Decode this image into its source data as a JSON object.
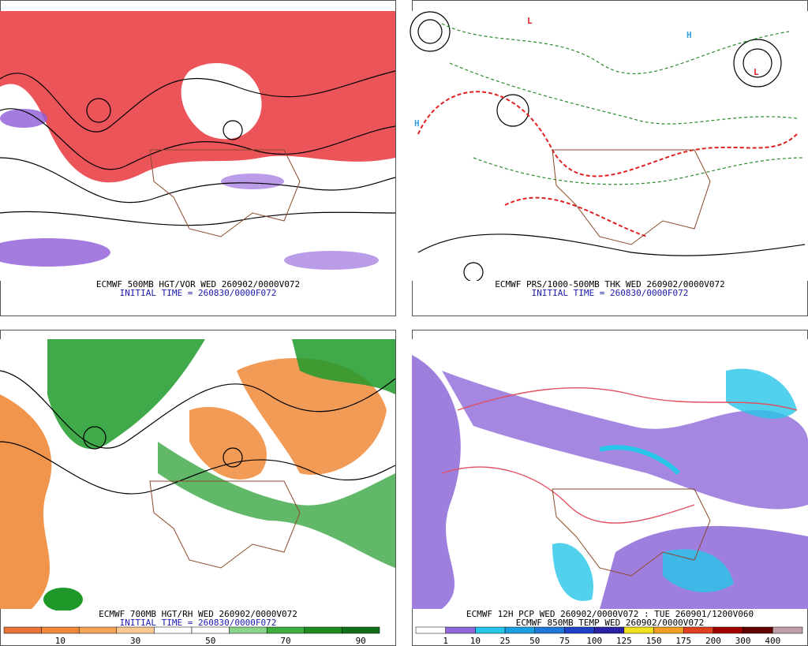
{
  "panels": [
    {
      "caption": "ECMWF 500MB HGT/VOR WED 260902/0000V072",
      "initial_time": "INITIAL TIME = 260830/0000F072"
    },
    {
      "caption": "ECMWF PRS/1000-500MB THK WED 260902/0000V072",
      "initial_time": "INITIAL TIME = 260830/0000F072"
    },
    {
      "caption": "ECMWF 700MB HGT/RH WED 260902/0000V072",
      "initial_time": "INITIAL TIME = 260830/0000F072",
      "colorbar": {
        "labels": [
          "10",
          "30",
          "50",
          "70",
          "90"
        ]
      }
    },
    {
      "caption": "ECMWF 12H PCP WED 260902/0000V072 : TUE 260901/1200V060",
      "initial_time": "ECMWF 850MB TEMP WED 260902/0000V072",
      "colorbar": {
        "labels": [
          "1",
          "10",
          "25",
          "50",
          "75",
          "100",
          "125",
          "150",
          "175",
          "200",
          "300",
          "400"
        ]
      }
    }
  ]
}
